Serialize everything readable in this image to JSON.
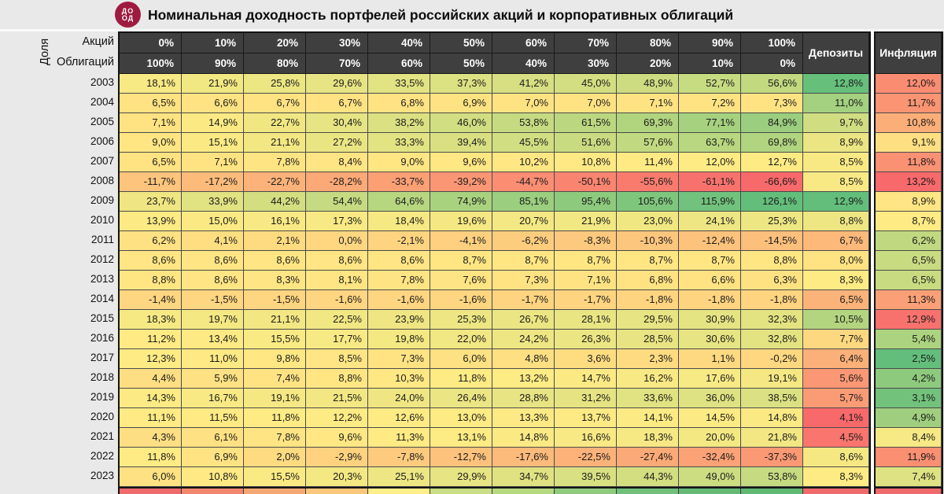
{
  "title": "Номинальная доходность портфелей российских акций и корпоративных облигаций",
  "logo": {
    "top": "ДО",
    "bottom": "ОД",
    "bg_color": "#9e1b3f"
  },
  "header": {
    "share": "Доля",
    "stocks": "Акций",
    "bonds": "Облигаций",
    "deposits": "Депозиты",
    "inflation": "Инфляция"
  },
  "chart_data": {
    "type": "heatmap",
    "title": "Номинальная доходность портфелей российских акций и корпоративных облигаций",
    "columns_stocks_pct": [
      "0%",
      "10%",
      "20%",
      "30%",
      "40%",
      "50%",
      "60%",
      "70%",
      "80%",
      "90%",
      "100%"
    ],
    "columns_bonds_pct": [
      "100%",
      "90%",
      "80%",
      "70%",
      "60%",
      "50%",
      "40%",
      "30%",
      "20%",
      "10%",
      "0%"
    ],
    "value_format": "percent_ru_one_decimal",
    "rows": [
      {
        "year": 2003,
        "values": [
          18.1,
          21.9,
          25.8,
          29.6,
          33.5,
          37.3,
          41.2,
          45.0,
          48.9,
          52.7,
          56.6
        ],
        "deposit": 12.8,
        "inflation": 12.0
      },
      {
        "year": 2004,
        "values": [
          6.5,
          6.6,
          6.7,
          6.7,
          6.8,
          6.9,
          7.0,
          7.0,
          7.1,
          7.2,
          7.3
        ],
        "deposit": 11.0,
        "inflation": 11.7
      },
      {
        "year": 2005,
        "values": [
          7.1,
          14.9,
          22.7,
          30.4,
          38.2,
          46.0,
          53.8,
          61.5,
          69.3,
          77.1,
          84.9
        ],
        "deposit": 9.7,
        "inflation": 10.8
      },
      {
        "year": 2006,
        "values": [
          9.0,
          15.1,
          21.1,
          27.2,
          33.3,
          39.4,
          45.5,
          51.6,
          57.6,
          63.7,
          69.8
        ],
        "deposit": 8.9,
        "inflation": 9.1
      },
      {
        "year": 2007,
        "values": [
          6.5,
          7.1,
          7.8,
          8.4,
          9.0,
          9.6,
          10.2,
          10.8,
          11.4,
          12.0,
          12.7
        ],
        "deposit": 8.5,
        "inflation": 11.8
      },
      {
        "year": 2008,
        "values": [
          -11.7,
          -17.2,
          -22.7,
          -28.2,
          -33.7,
          -39.2,
          -44.7,
          -50.1,
          -55.6,
          -61.1,
          -66.6
        ],
        "deposit": 8.5,
        "inflation": 13.2
      },
      {
        "year": 2009,
        "values": [
          23.7,
          33.9,
          44.2,
          54.4,
          64.6,
          74.9,
          85.1,
          95.4,
          105.6,
          115.9,
          126.1
        ],
        "deposit": 12.9,
        "inflation": 8.9
      },
      {
        "year": 2010,
        "values": [
          13.9,
          15.0,
          16.1,
          17.3,
          18.4,
          19.6,
          20.7,
          21.9,
          23.0,
          24.1,
          25.3
        ],
        "deposit": 8.8,
        "inflation": 8.7
      },
      {
        "year": 2011,
        "values": [
          6.2,
          4.1,
          2.1,
          0.0,
          -2.1,
          -4.1,
          -6.2,
          -8.3,
          -10.3,
          -12.4,
          -14.5
        ],
        "deposit": 6.7,
        "inflation": 6.2
      },
      {
        "year": 2012,
        "values": [
          8.6,
          8.6,
          8.6,
          8.6,
          8.6,
          8.7,
          8.7,
          8.7,
          8.7,
          8.7,
          8.8
        ],
        "deposit": 8.0,
        "inflation": 6.5
      },
      {
        "year": 2013,
        "values": [
          8.8,
          8.6,
          8.3,
          8.1,
          7.8,
          7.6,
          7.3,
          7.1,
          6.8,
          6.6,
          6.3
        ],
        "deposit": 8.3,
        "inflation": 6.5
      },
      {
        "year": 2014,
        "values": [
          -1.4,
          -1.5,
          -1.5,
          -1.6,
          -1.6,
          -1.6,
          -1.7,
          -1.7,
          -1.8,
          -1.8,
          -1.8
        ],
        "deposit": 6.5,
        "inflation": 11.3
      },
      {
        "year": 2015,
        "values": [
          18.3,
          19.7,
          21.1,
          22.5,
          23.9,
          25.3,
          26.7,
          28.1,
          29.5,
          30.9,
          32.3
        ],
        "deposit": 10.5,
        "inflation": 12.9
      },
      {
        "year": 2016,
        "values": [
          11.2,
          13.4,
          15.5,
          17.7,
          19.8,
          22.0,
          24.2,
          26.3,
          28.5,
          30.6,
          32.8
        ],
        "deposit": 7.7,
        "inflation": 5.4
      },
      {
        "year": 2017,
        "values": [
          12.3,
          11.0,
          9.8,
          8.5,
          7.3,
          6.0,
          4.8,
          3.6,
          2.3,
          1.1,
          -0.2
        ],
        "deposit": 6.4,
        "inflation": 2.5
      },
      {
        "year": 2018,
        "values": [
          4.4,
          5.9,
          7.4,
          8.8,
          10.3,
          11.8,
          13.2,
          14.7,
          16.2,
          17.6,
          19.1
        ],
        "deposit": 5.6,
        "inflation": 4.2
      },
      {
        "year": 2019,
        "values": [
          14.3,
          16.7,
          19.1,
          21.5,
          24.0,
          26.4,
          28.8,
          31.2,
          33.6,
          36.0,
          38.5
        ],
        "deposit": 5.7,
        "inflation": 3.1
      },
      {
        "year": 2020,
        "values": [
          11.1,
          11.5,
          11.8,
          12.2,
          12.6,
          13.0,
          13.3,
          13.7,
          14.1,
          14.5,
          14.8
        ],
        "deposit": 4.1,
        "inflation": 4.9
      },
      {
        "year": 2021,
        "values": [
          4.3,
          6.1,
          7.8,
          9.6,
          11.3,
          13.1,
          14.8,
          16.6,
          18.3,
          20.0,
          21.8
        ],
        "deposit": 4.5,
        "inflation": 8.4
      },
      {
        "year": 2022,
        "values": [
          11.8,
          6.9,
          2.0,
          -2.9,
          -7.8,
          -12.7,
          -17.6,
          -22.5,
          -27.4,
          -32.4,
          -37.3
        ],
        "deposit": 8.6,
        "inflation": 11.9
      },
      {
        "year": 2023,
        "values": [
          6.0,
          10.8,
          15.5,
          20.3,
          25.1,
          29.9,
          34.7,
          39.5,
          44.3,
          49.0,
          53.8
        ],
        "deposit": 8.3,
        "inflation": 7.4
      }
    ],
    "color_scales": {
      "portfolio": {
        "min": -66.6,
        "mid": 12.0,
        "max": 126.1,
        "min_color": "#f8696b",
        "mid_color": "#ffeb84",
        "max_color": "#63be7b"
      },
      "deposits": {
        "min": 4.1,
        "mid": 8.3,
        "max": 12.9,
        "min_color": "#f8696b",
        "mid_color": "#ffeb84",
        "max_color": "#63be7b"
      },
      "inflation": {
        "min": 2.5,
        "mid": 8.7,
        "max": 13.2,
        "min_color": "#63be7b",
        "mid_color": "#ffeb84",
        "max_color": "#f8696b"
      }
    },
    "summary_strip_colors": [
      "#ee6a6c",
      "#f1876f",
      "#f5a873",
      "#f9c77a",
      "#fcee8a",
      "#c8dd85",
      "#b5d880",
      "#8fca7d",
      "#71c07b",
      "#65bb76",
      "#5fb873",
      "#ee6a6c",
      "#ee6a6c"
    ]
  }
}
